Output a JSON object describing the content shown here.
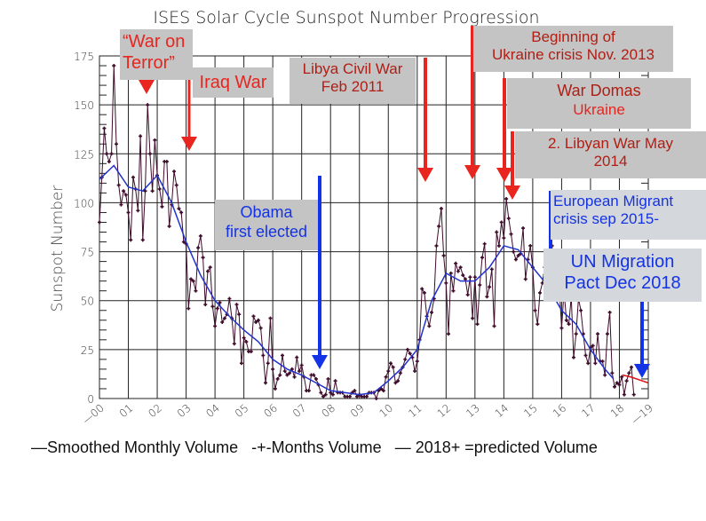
{
  "chart_data": {
    "type": "line",
    "title": "ISES Solar Cycle Sunspot Number Progression",
    "ylabel": "Sunspot Number",
    "xlabel": "",
    "xlim": [
      2000,
      2019
    ],
    "ylim": [
      0,
      175
    ],
    "yticks": [
      0,
      25,
      50,
      75,
      100,
      125,
      150,
      175
    ],
    "xtick_labels": [
      "00",
      "01",
      "02",
      "03",
      "04",
      "05",
      "06",
      "07",
      "08",
      "09",
      "10",
      "11",
      "12",
      "13",
      "14",
      "15",
      "16",
      "17",
      "18",
      "19"
    ],
    "grid": true,
    "series": [
      {
        "name": "Months Volume",
        "style": "line-with-plus-markers",
        "color": "#3d0a2a",
        "start_year": 2000,
        "step": "monthly",
        "values": [
          90,
          113,
          138,
          125,
          121,
          125,
          170,
          130,
          109,
          99,
          106,
          104,
          95,
          81,
          113,
          107,
          96,
          134,
          81,
          106,
          150,
          125,
          106,
          132,
          114,
          107,
          98,
          121,
          121,
          88,
          99,
          116,
          109,
          97,
          95,
          80,
          79,
          46,
          61,
          60,
          55,
          77,
          83,
          72,
          48,
          65,
          67,
          47,
          37,
          46,
          49,
          39,
          41,
          43,
          51,
          41,
          28,
          48,
          43,
          18,
          31,
          29,
          24,
          24,
          42,
          39,
          40,
          36,
          22,
          8,
          18,
          41,
          15,
          5,
          10,
          12,
          22,
          14,
          12,
          13,
          15,
          11,
          21,
          14,
          17,
          11,
          4,
          4,
          12,
          12,
          10,
          7,
          3,
          1,
          2,
          10,
          3,
          2,
          9,
          3,
          3,
          3,
          1,
          1,
          1,
          3,
          4,
          1,
          2,
          1,
          1,
          1,
          3,
          3,
          3,
          0,
          4,
          5,
          4,
          11,
          14,
          18,
          16,
          8,
          9,
          13,
          16,
          20,
          25,
          23,
          21,
          14,
          19,
          30,
          56,
          54,
          42,
          37,
          44,
          51,
          78,
          88,
          97,
          73,
          59,
          33,
          64,
          55,
          69,
          65,
          67,
          63,
          61,
          53,
          62,
          41,
          62,
          38,
          58,
          72,
          79,
          52,
          57,
          66,
          37,
          85,
          78,
          90,
          82,
          102,
          92,
          84,
          75,
          71,
          73,
          74,
          87,
          61,
          71,
          78,
          67,
          45,
          38,
          54,
          59,
          67,
          67,
          65,
          78,
          62,
          63,
          58,
          36,
          55,
          40,
          38,
          52,
          21,
          33,
          51,
          45,
          33,
          22,
          18,
          26,
          27,
          18,
          33,
          19,
          19,
          12,
          33,
          44,
          13,
          6,
          8,
          7,
          11,
          2,
          9,
          13,
          16,
          2
        ]
      },
      {
        "name": "Smoothed Monthly Volume",
        "color": "#2233cc",
        "x": [
          2000.0,
          2000.5,
          2001.0,
          2001.5,
          2002.0,
          2002.5,
          2003.0,
          2003.5,
          2004.0,
          2004.5,
          2005.0,
          2005.5,
          2006.0,
          2006.5,
          2007.0,
          2007.5,
          2008.0,
          2008.5,
          2009.0,
          2009.5,
          2010.0,
          2010.5,
          2011.0,
          2011.5,
          2012.0,
          2012.5,
          2013.0,
          2013.5,
          2014.0,
          2014.5,
          2015.0,
          2015.5,
          2016.0,
          2016.5,
          2017.0,
          2017.5,
          2017.8
        ],
        "values": [
          112,
          119,
          108,
          106,
          114,
          100,
          80,
          63,
          50,
          42,
          35,
          29,
          20,
          15,
          12,
          8,
          4,
          3,
          2,
          3,
          9,
          16,
          25,
          50,
          64,
          60,
          60,
          67,
          78,
          76,
          67,
          58,
          45,
          38,
          25,
          15,
          10
        ]
      },
      {
        "name": "2018+ =predicted Volume",
        "color": "#dd1111",
        "x": [
          2018.1,
          2018.4,
          2018.7,
          2019.0
        ],
        "values": [
          12,
          11,
          9.5,
          8
        ]
      }
    ],
    "legend_text": "—Smoothed Monthly Volume   -+-Months Volume   — 2018+ =predicted Volume"
  },
  "annotations": {
    "war_on_terror": "“War on Terror”",
    "iraq_war": "Iraq War",
    "libya_civil_war_1": "Libya Civil War",
    "libya_civil_war_2": "Feb 2011",
    "ukraine_crisis_1": "Beginning of",
    "ukraine_crisis_2": "Ukraine crisis  Nov. 2013",
    "war_domas_1": "War Domas",
    "war_domas_2": "Ukraine",
    "libyan_war_1": "2. Libyan War May",
    "libyan_war_2": "2014",
    "obama_1": "Obama",
    "obama_2": "first elected",
    "migrant_1": "European Migrant",
    "migrant_2": "crisis sep 2015-",
    "un_pact_1": "UN Migration",
    "un_pact_2": "Pact Dec 2018",
    "red_color": "#e8251e",
    "blue_color": "#1432e6"
  }
}
